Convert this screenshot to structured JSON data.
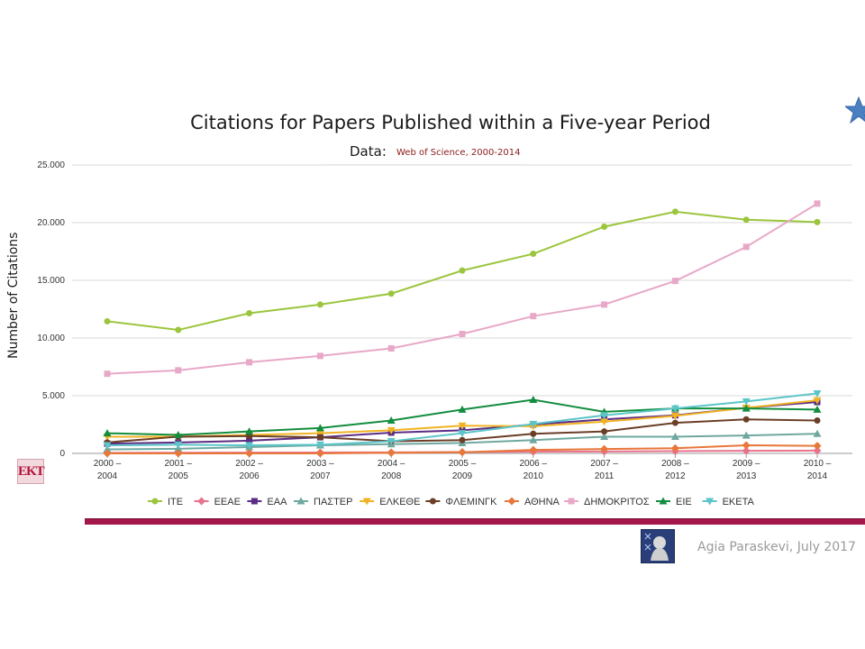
{
  "slide": {
    "title": "Citations for Papers Published within a Five-year Period",
    "subtitle_label": "Data:",
    "subtitle_source": "Web of Science, 2000-2014",
    "ylabel": "Number of Citations",
    "footer": "Agia Paraskevi, July 2017",
    "logo_text": "EKT"
  },
  "colors": {
    "accent_bar": "#a3174a",
    "star": "#4a7fc1"
  },
  "chart_data": {
    "type": "line",
    "title": "Citations for Papers Published within a Five-year Period",
    "subtitle": "Data: Web of Science, 2000-2014",
    "xlabel": "",
    "ylabel": "Number of Citations",
    "ylim": [
      0,
      25000
    ],
    "yticks": [
      0,
      5000,
      10000,
      15000,
      20000,
      25000
    ],
    "ytick_labels": [
      "0",
      "5.000",
      "10.000",
      "15.000",
      "20.000",
      "25.000"
    ],
    "grid": "horizontal",
    "legend_position": "bottom",
    "categories": [
      [
        "2000 –",
        "2004"
      ],
      [
        "2001 –",
        "2005"
      ],
      [
        "2002 –",
        "2006"
      ],
      [
        "2003 –",
        "2007"
      ],
      [
        "2004 –",
        "2008"
      ],
      [
        "2005 –",
        "2009"
      ],
      [
        "2006 –",
        "2010"
      ],
      [
        "2007 –",
        "2011"
      ],
      [
        "2008 –",
        "2012"
      ],
      [
        "2009 –",
        "2013"
      ],
      [
        "2010 –",
        "2014"
      ]
    ],
    "series": [
      {
        "name": "ΙΤΕ",
        "color": "#9bc53d",
        "marker": "circle",
        "values": [
          11450,
          10700,
          12150,
          12900,
          13850,
          15850,
          17300,
          19650,
          20950,
          20250,
          20050
        ]
      },
      {
        "name": "ΕΕΑΕ",
        "color": "#e8738c",
        "marker": "diamond",
        "values": [
          50,
          60,
          70,
          80,
          90,
          120,
          150,
          170,
          200,
          220,
          240
        ]
      },
      {
        "name": "ΕΑΑ",
        "color": "#5b2c83",
        "marker": "square",
        "values": [
          850,
          950,
          1100,
          1400,
          1800,
          2000,
          2500,
          2950,
          3300,
          3950,
          4450
        ]
      },
      {
        "name": "ΠΑΣΤΕΡ",
        "color": "#6fa8a0",
        "marker": "triangle",
        "values": [
          350,
          400,
          550,
          700,
          800,
          900,
          1150,
          1450,
          1450,
          1550,
          1700
        ]
      },
      {
        "name": "ΕΛΚΕΘΕ",
        "color": "#f0b323",
        "marker": "triangle-down",
        "values": [
          1450,
          1450,
          1600,
          1750,
          2000,
          2400,
          2350,
          2750,
          3250,
          3950,
          4600
        ]
      },
      {
        "name": "ΦΛΕΜΙΝΓΚ",
        "color": "#6b3e26",
        "marker": "circle",
        "values": [
          950,
          1450,
          1500,
          1400,
          1050,
          1150,
          1700,
          1900,
          2650,
          2950,
          2850
        ]
      },
      {
        "name": "ΑΘΗΝΑ",
        "color": "#e8773a",
        "marker": "diamond",
        "values": [
          0,
          0,
          0,
          0,
          50,
          100,
          300,
          380,
          450,
          700,
          650
        ]
      },
      {
        "name": "ΔΗΜΟΚΡΙΤΟΣ",
        "color": "#e8a8c8",
        "marker": "square",
        "values": [
          6900,
          7200,
          7900,
          8450,
          9100,
          10350,
          11900,
          12900,
          14950,
          17900,
          21650
        ]
      },
      {
        "name": "ΕΙΕ",
        "color": "#138d3e",
        "marker": "triangle",
        "values": [
          1750,
          1600,
          1900,
          2200,
          2850,
          3800,
          4650,
          3600,
          3900,
          3900,
          3800
        ]
      },
      {
        "name": "ΕΚΕΤΑ",
        "color": "#5bc5c9",
        "marker": "triangle-down",
        "values": [
          700,
          750,
          700,
          750,
          1050,
          1750,
          2550,
          3300,
          3900,
          4500,
          5200
        ]
      }
    ]
  }
}
